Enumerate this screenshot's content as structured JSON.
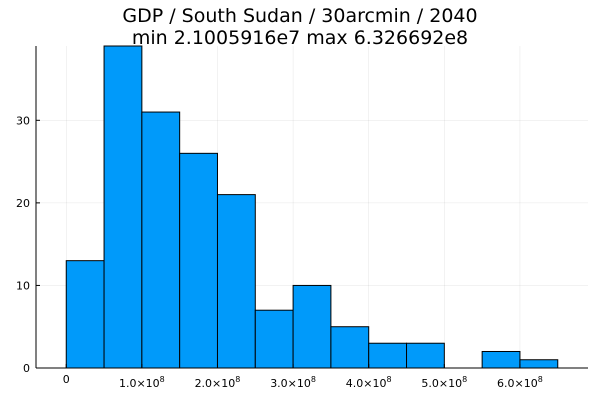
{
  "chart_data": {
    "type": "bar",
    "title_line1": "GDP / South Sudan / 30arcmin / 2040",
    "title_line2": "min 2.1005916e7  max 6.326692e8",
    "xlabel": "",
    "ylabel": "",
    "bin_width": 50000000,
    "bins": [
      {
        "start": 0,
        "count": 13
      },
      {
        "start": 50000000,
        "count": 39
      },
      {
        "start": 100000000,
        "count": 31
      },
      {
        "start": 150000000,
        "count": 26
      },
      {
        "start": 200000000,
        "count": 21
      },
      {
        "start": 250000000,
        "count": 7
      },
      {
        "start": 300000000,
        "count": 10
      },
      {
        "start": 350000000,
        "count": 5
      },
      {
        "start": 400000000,
        "count": 3
      },
      {
        "start": 450000000,
        "count": 3
      },
      {
        "start": 500000000,
        "count": 0
      },
      {
        "start": 550000000,
        "count": 2
      },
      {
        "start": 600000000,
        "count": 1
      }
    ],
    "xlim": [
      -40000000,
      690000000
    ],
    "ylim": [
      0,
      39
    ],
    "x_ticks": [
      {
        "value": 0,
        "mantissa": "0",
        "exponent": ""
      },
      {
        "value": 100000000,
        "mantissa": "1.0×10",
        "exponent": "8"
      },
      {
        "value": 200000000,
        "mantissa": "2.0×10",
        "exponent": "8"
      },
      {
        "value": 300000000,
        "mantissa": "3.0×10",
        "exponent": "8"
      },
      {
        "value": 400000000,
        "mantissa": "4.0×10",
        "exponent": "8"
      },
      {
        "value": 500000000,
        "mantissa": "5.0×10",
        "exponent": "8"
      },
      {
        "value": 600000000,
        "mantissa": "6.0×10",
        "exponent": "8"
      }
    ],
    "y_ticks": [
      {
        "value": 0,
        "label": "0"
      },
      {
        "value": 10,
        "label": "10"
      },
      {
        "value": 20,
        "label": "20"
      },
      {
        "value": 30,
        "label": "30"
      }
    ],
    "grid": true,
    "legend": "none",
    "bar_color": "#009AFA",
    "edge_color": "#000000"
  }
}
